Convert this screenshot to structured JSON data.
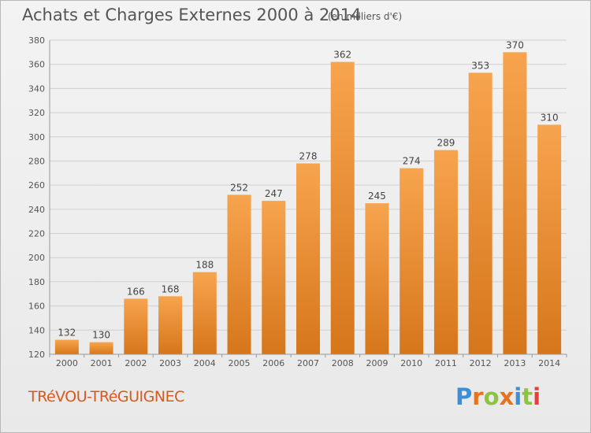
{
  "header": {
    "title": "Achats et Charges Externes 2000 à 2014",
    "subtitle": "(en milliers d'€)"
  },
  "footer": {
    "town": "TRéVOU-TRéGUIGNEC",
    "brand": "Proxiti"
  },
  "colors": {
    "bar_light": "#f7a44e",
    "bar_dark": "#d6761b",
    "grid": "#d0d0d0",
    "axis": "#555555",
    "town_text": "#d65a1e",
    "brand_letters": [
      "#3a8fd6",
      "#e8731e",
      "#8bc43f",
      "#e8731e",
      "#3a8fd6",
      "#8bc43f",
      "#e83e3e"
    ]
  },
  "chart_data": {
    "type": "bar",
    "title": "Achats et Charges Externes 2000 à 2014",
    "subtitle": "(en milliers d'€)",
    "xlabel": "",
    "ylabel": "",
    "categories": [
      "2000",
      "2001",
      "2002",
      "2003",
      "2004",
      "2005",
      "2006",
      "2007",
      "2008",
      "2009",
      "2010",
      "2011",
      "2012",
      "2013",
      "2014"
    ],
    "values": [
      132,
      130,
      166,
      168,
      188,
      252,
      247,
      278,
      362,
      245,
      274,
      289,
      353,
      370,
      310
    ],
    "ylim": [
      120,
      380
    ],
    "yticks": [
      120,
      140,
      160,
      180,
      200,
      220,
      240,
      260,
      280,
      300,
      320,
      340,
      360,
      380
    ],
    "grid": true,
    "legend": "none"
  }
}
